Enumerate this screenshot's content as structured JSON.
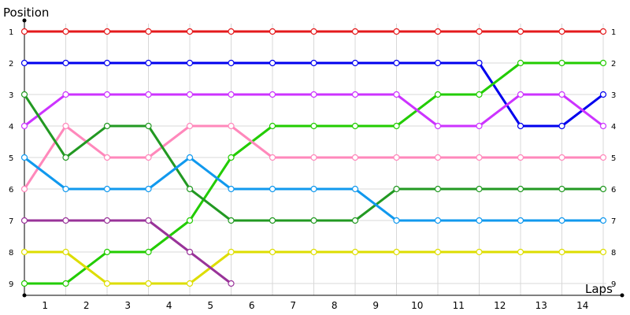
{
  "chart_data": {
    "type": "line",
    "ylabel": "Position",
    "xlabel": "Laps",
    "x_tick_labels": [
      "1",
      "2",
      "3",
      "4",
      "5",
      "6",
      "7",
      "8",
      "9",
      "10",
      "11",
      "12",
      "13",
      "14"
    ],
    "y_tick_labels": [
      "1",
      "2",
      "3",
      "4",
      "5",
      "6",
      "7",
      "8",
      "9"
    ],
    "ylim": [
      1,
      9
    ],
    "y_inverted": true,
    "grid": true,
    "x": [
      0,
      1,
      2,
      3,
      4,
      5,
      6,
      7,
      8,
      9,
      10,
      11,
      12,
      13,
      14
    ],
    "series": [
      {
        "color": "#e41a1c",
        "values": [
          1,
          1,
          1,
          1,
          1,
          1,
          1,
          1,
          1,
          1,
          1,
          1,
          1,
          1,
          1
        ],
        "end_label": "1"
      },
      {
        "color": "#0000ee",
        "values": [
          2,
          2,
          2,
          2,
          2,
          2,
          2,
          2,
          2,
          2,
          2,
          2,
          4,
          4,
          3
        ],
        "end_label": "3"
      },
      {
        "color": "#22cc00",
        "values": [
          9,
          9,
          8,
          8,
          7,
          5,
          4,
          4,
          4,
          4,
          3,
          3,
          2,
          2,
          2
        ],
        "end_label": "2"
      },
      {
        "color": "#cc33ff",
        "values": [
          4,
          3,
          3,
          3,
          3,
          3,
          3,
          3,
          3,
          3,
          4,
          4,
          3,
          3,
          4
        ],
        "end_label": "4"
      },
      {
        "color": "#ff88bb",
        "values": [
          6,
          4,
          5,
          5,
          4,
          4,
          5,
          5,
          5,
          5,
          5,
          5,
          5,
          5,
          5
        ],
        "end_label": "5"
      },
      {
        "color": "#229922",
        "values": [
          3,
          5,
          4,
          4,
          6,
          7,
          7,
          7,
          7,
          6,
          6,
          6,
          6,
          6,
          6
        ],
        "end_label": "6"
      },
      {
        "color": "#1199ee",
        "values": [
          5,
          6,
          6,
          6,
          5,
          6,
          6,
          6,
          6,
          7,
          7,
          7,
          7,
          7,
          7
        ],
        "end_label": "7"
      },
      {
        "color": "#dddd00",
        "values": [
          8,
          8,
          9,
          9,
          9,
          8,
          8,
          8,
          8,
          8,
          8,
          8,
          8,
          8,
          8
        ],
        "end_label": "8"
      },
      {
        "color": "#993399",
        "values": [
          7,
          7,
          7,
          7,
          8,
          9,
          null,
          null,
          null,
          null,
          null,
          null,
          null,
          null,
          null
        ],
        "end_label": "9"
      }
    ]
  }
}
